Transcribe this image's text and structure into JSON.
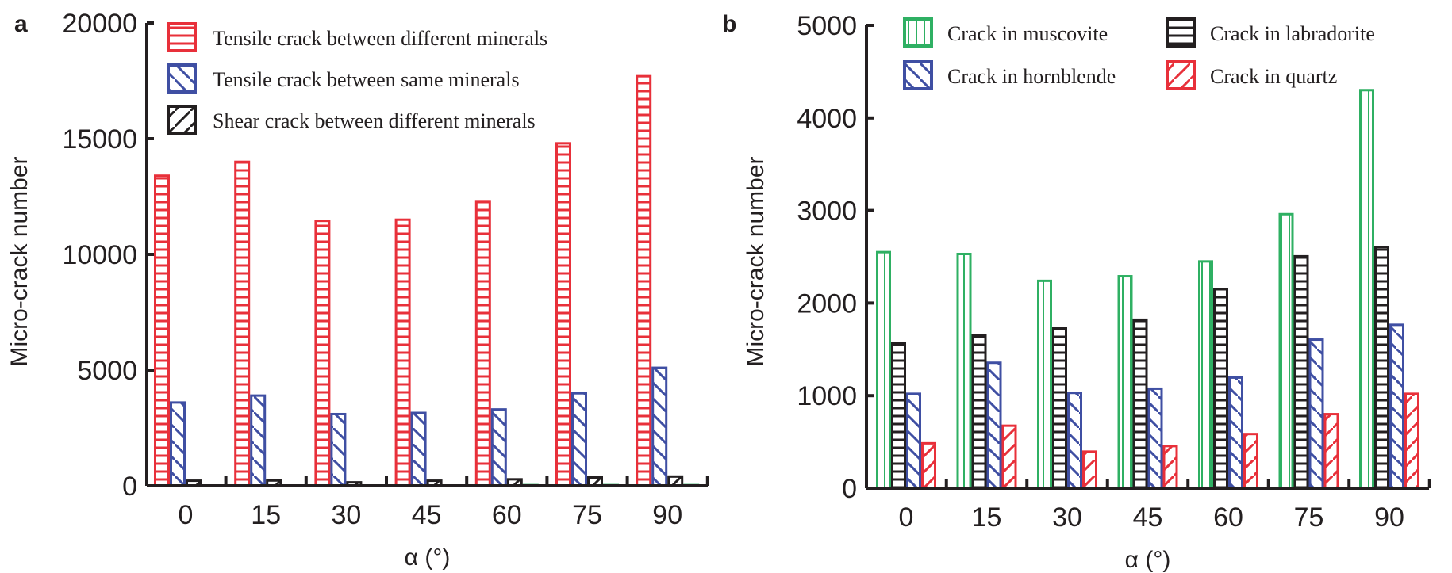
{
  "chart_data": [
    {
      "panel_label": "a",
      "type": "bar",
      "xlabel": "α (°)",
      "ylabel": "Micro-crack number",
      "ylim": [
        0,
        20000
      ],
      "yticks": [
        "0",
        "5000",
        "10000",
        "15000",
        "20000"
      ],
      "categories": [
        "0",
        "15",
        "30",
        "45",
        "60",
        "75",
        "90"
      ],
      "legend_position": "top",
      "grid": false,
      "series": [
        {
          "name": "Tensile crack between different minerals",
          "color": "#e8303a",
          "pattern": "horizontal",
          "values": [
            13400,
            14000,
            11450,
            11500,
            12300,
            14800,
            17700
          ]
        },
        {
          "name": "Tensile crack between same minerals",
          "color": "#3f4fa3",
          "pattern": "backslash",
          "values": [
            3600,
            3900,
            3100,
            3150,
            3300,
            4000,
            5100
          ]
        },
        {
          "name": "Shear crack between different minerals",
          "color": "#231f20",
          "pattern": "slash",
          "values": [
            220,
            230,
            150,
            220,
            280,
            360,
            400
          ]
        },
        {
          "color": "#2fb063",
          "pattern": "vertical",
          "values": [
            0,
            0,
            0,
            0,
            30,
            30,
            30
          ]
        }
      ]
    },
    {
      "panel_label": "b",
      "type": "bar",
      "xlabel": "α (°)",
      "ylabel": "Micro-crack number",
      "ylim": [
        0,
        5000
      ],
      "yticks": [
        "0",
        "1000",
        "2000",
        "3000",
        "4000",
        "5000"
      ],
      "categories": [
        "0",
        "15",
        "30",
        "45",
        "60",
        "75",
        "90"
      ],
      "legend_position": "top",
      "grid": false,
      "series": [
        {
          "name": "Crack in muscovite",
          "color": "#2fb063",
          "pattern": "vertical",
          "values": [
            2550,
            2530,
            2240,
            2290,
            2450,
            2960,
            4300
          ]
        },
        {
          "name": "Crack in labradorite",
          "color": "#231f20",
          "pattern": "horizontal",
          "values": [
            1565,
            1655,
            1730,
            1820,
            2150,
            2505,
            2605
          ]
        },
        {
          "name": "Crack in hornblende",
          "color": "#3f4fa3",
          "pattern": "backslash",
          "values": [
            1020,
            1355,
            1030,
            1075,
            1195,
            1605,
            1765
          ]
        },
        {
          "name": "Crack in quartz",
          "color": "#e8303a",
          "pattern": "slash",
          "values": [
            485,
            675,
            395,
            455,
            585,
            800,
            1020
          ]
        }
      ]
    }
  ]
}
